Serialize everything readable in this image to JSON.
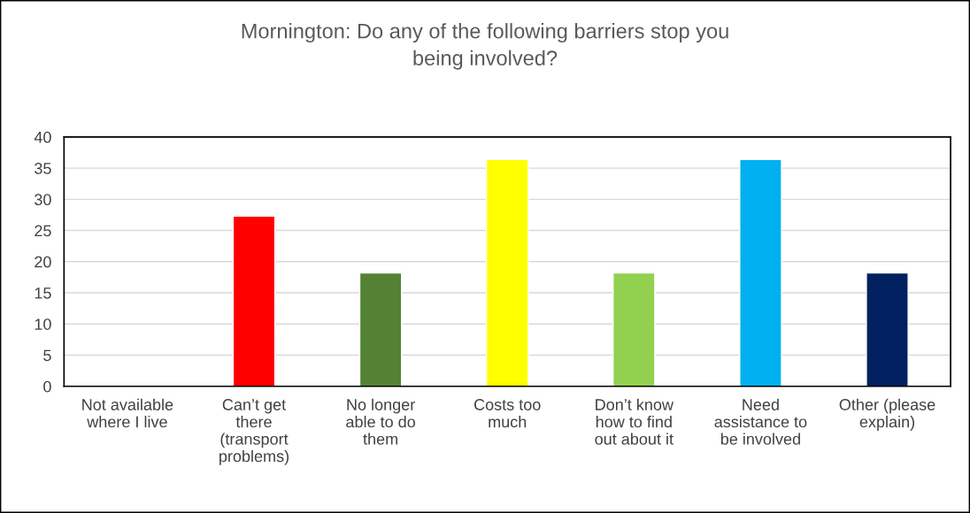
{
  "chart_data": {
    "type": "bar",
    "title": "Mornington: Do any of the following barriers stop you\nbeing involved?",
    "categories": [
      "Not available\nwhere I live",
      "Can’t get\nthere\n(transport\nproblems)",
      "No longer\nable to do\nthem",
      "Costs too\nmuch",
      "Don’t know\nhow to find\nout about it",
      "Need\nassistance to\nbe involved",
      "Other (please\nexplain)"
    ],
    "values": [
      0,
      27.3,
      18.2,
      36.4,
      18.2,
      36.4,
      18.2
    ],
    "colors": [
      null,
      "#ff0000",
      "#548235",
      "#ffff00",
      "#92d050",
      "#00b0f0",
      "#002060"
    ],
    "ylim": [
      0,
      40
    ],
    "yticks": [
      0,
      5,
      10,
      15,
      20,
      25,
      30,
      35,
      40
    ],
    "grid": "y",
    "legend": false
  }
}
